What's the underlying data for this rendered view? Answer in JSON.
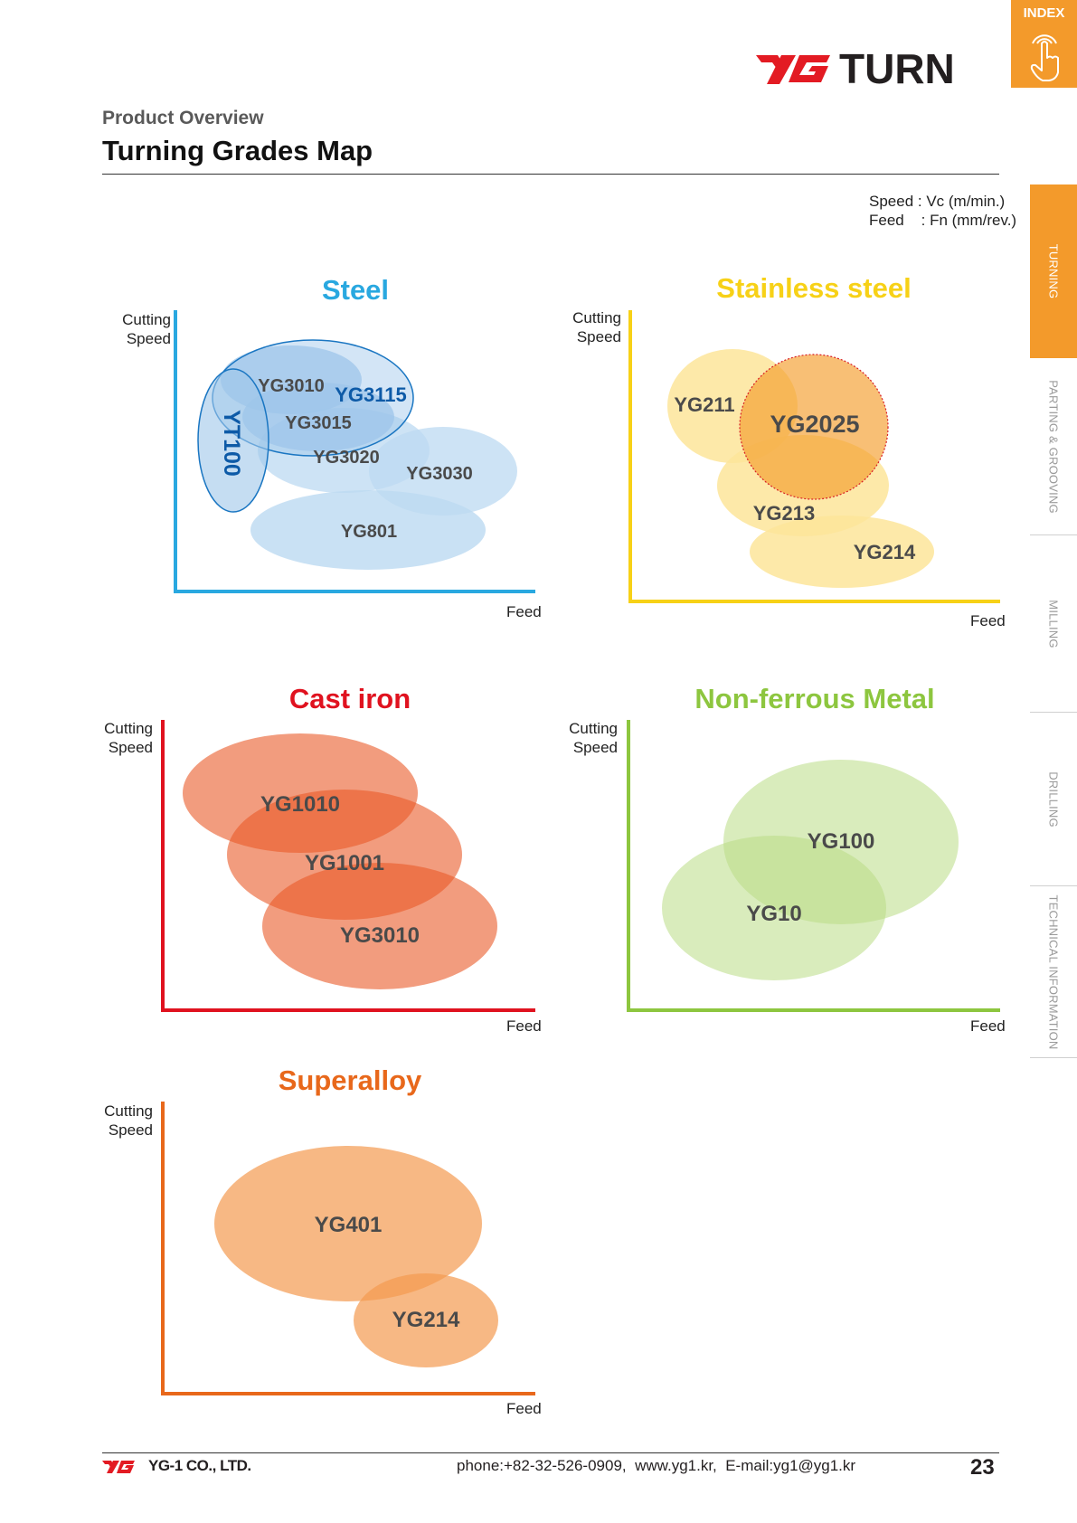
{
  "header": {
    "index_label": "INDEX",
    "brand": {
      "prefix": "YG",
      "name": "TURN"
    },
    "section": "Product Overview",
    "title": "Turning Grades Map",
    "units": [
      "Speed : Vc (m/min.)",
      "Feed    : Fn (mm/rev.)"
    ]
  },
  "sidenav": {
    "items": [
      {
        "label": "TURNING",
        "active": true
      },
      {
        "label": "PARTING & GROOVING",
        "active": false
      },
      {
        "label": "MILLING",
        "active": false
      },
      {
        "label": "DRILLING",
        "active": false
      },
      {
        "label": "TECHNICAL INFORMATION",
        "active": false
      }
    ]
  },
  "axis": {
    "y": [
      "Cutting",
      "Speed"
    ],
    "x": "Feed"
  },
  "colors": {
    "brand_red": "#e31b23",
    "accent_orange": "#f39a2b",
    "steel": "#29a8e0",
    "stainless": "#f7d117",
    "cast_iron": "#e0121f",
    "non_ferrous": "#8dc63f",
    "superalloy": "#e8681b"
  },
  "chart_data": [
    {
      "type": "scatter",
      "title": "Steel",
      "xlabel": "Feed",
      "ylabel": "Cutting Speed",
      "grades": [
        "YG3010",
        "YG3115",
        "YG3015",
        "YT100",
        "YG3020",
        "YG3030",
        "YG801"
      ]
    },
    {
      "type": "scatter",
      "title": "Stainless steel",
      "xlabel": "Feed",
      "ylabel": "Cutting Speed",
      "grades": [
        "YG211",
        "YG2025",
        "YG213",
        "YG214"
      ]
    },
    {
      "type": "scatter",
      "title": "Cast iron",
      "xlabel": "Feed",
      "ylabel": "Cutting Speed",
      "grades": [
        "YG1010",
        "YG1001",
        "YG3010"
      ]
    },
    {
      "type": "scatter",
      "title": "Non-ferrous Metal",
      "xlabel": "Feed",
      "ylabel": "Cutting Speed",
      "grades": [
        "YG100",
        "YG10"
      ]
    },
    {
      "type": "scatter",
      "title": "Superalloy",
      "xlabel": "Feed",
      "ylabel": "Cutting Speed",
      "grades": [
        "YG401",
        "YG214"
      ]
    }
  ],
  "footer": {
    "company": "YG-1 CO., LTD.",
    "contact": "phone:+82-32-526-0909,  www.yg1.kr,  E-mail:yg1@yg1.kr",
    "page": "23"
  }
}
